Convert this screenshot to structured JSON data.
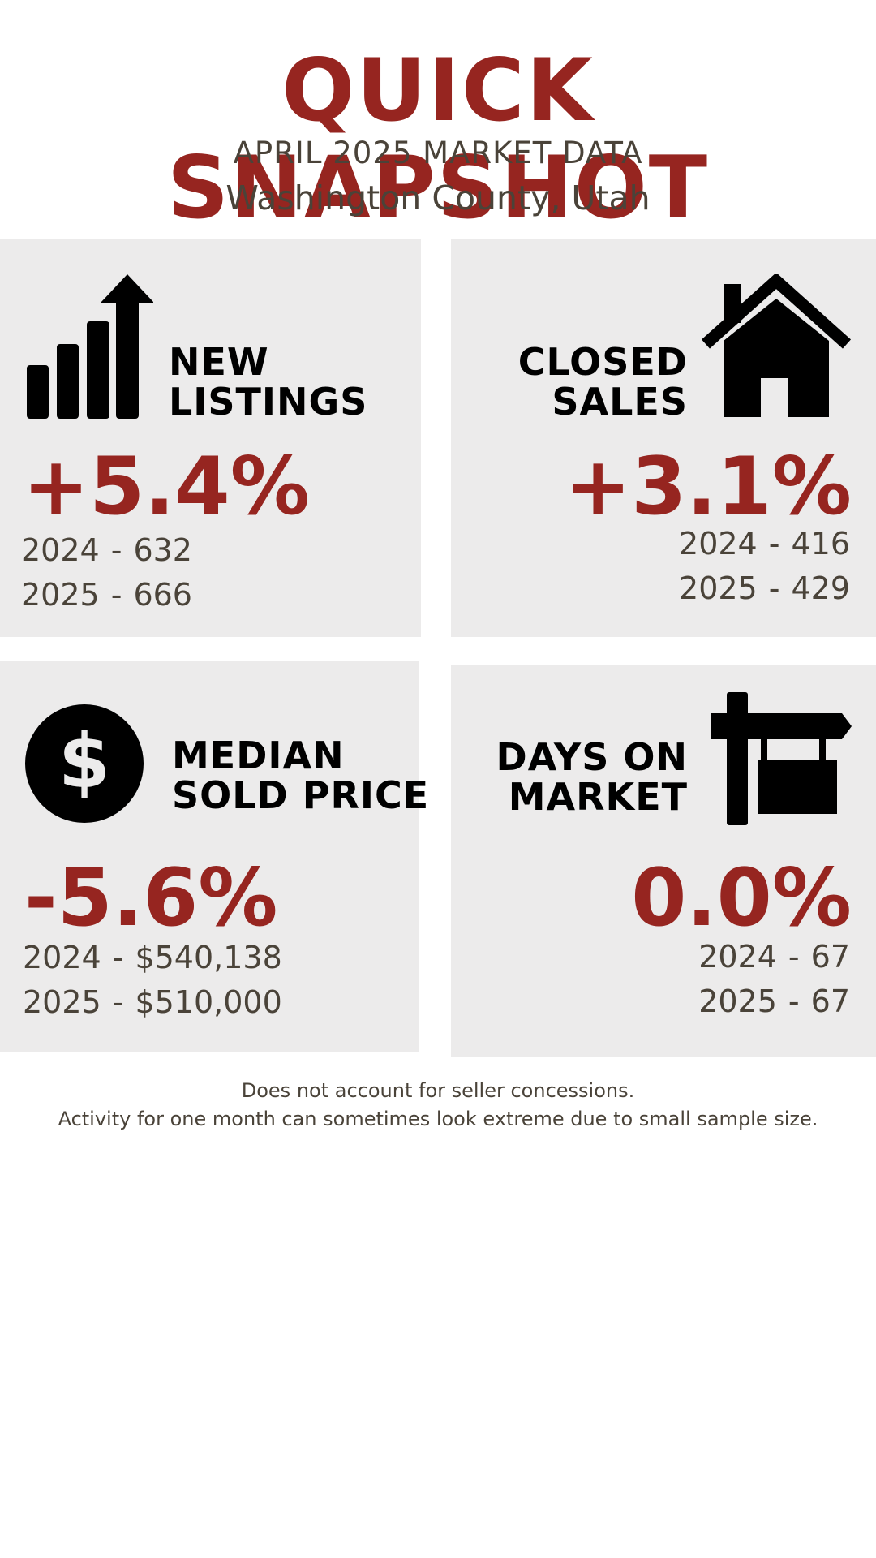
{
  "header": {
    "title": "QUICK SNAPSHOT",
    "subtitle": "APRIL 2025 MARKET DATA",
    "location": "Washington County, Utah"
  },
  "cards": {
    "new_listings": {
      "title_line1": "NEW",
      "title_line2": "LISTINGS",
      "change": "+5.4%",
      "row1_year": "2024",
      "row1_sep": "-",
      "row1_value": "632",
      "row2_year": "2025",
      "row2_sep": "-",
      "row2_value": "666",
      "icon": "bar-chart-arrow-icon"
    },
    "closed_sales": {
      "title_line1": "CLOSED",
      "title_line2": "SALES",
      "change": "+3.1%",
      "row1_year": "2024",
      "row1_sep": "-",
      "row1_value": "416",
      "row2_year": "2025",
      "row2_sep": "-",
      "row2_value": "429",
      "icon": "house-icon"
    },
    "median_sold_price": {
      "title_line1": "MEDIAN",
      "title_line2": "SOLD PRICE",
      "change": "-5.6%",
      "row1_year": "2024",
      "row1_sep": "-",
      "row1_value": "$540,138",
      "row2_year": "2025",
      "row2_sep": "-",
      "row2_value": "$510,000",
      "icon": "dollar-icon"
    },
    "days_on_market": {
      "title_line1": "DAYS ON",
      "title_line2": "MARKET",
      "change": "0.0%",
      "row1_year": "2024",
      "row1_sep": "-",
      "row1_value": "67",
      "row2_year": "2025",
      "row2_sep": "-",
      "row2_value": "67",
      "icon": "sign-post-icon"
    }
  },
  "footnotes": {
    "line1": "Does not account for seller concessions.",
    "line2": "Activity for one month can sometimes look extreme due to small sample size."
  },
  "colors": {
    "accent": "#962520",
    "card_bg": "#ecebeb",
    "text": "#4a4339",
    "icon": "#000000"
  }
}
